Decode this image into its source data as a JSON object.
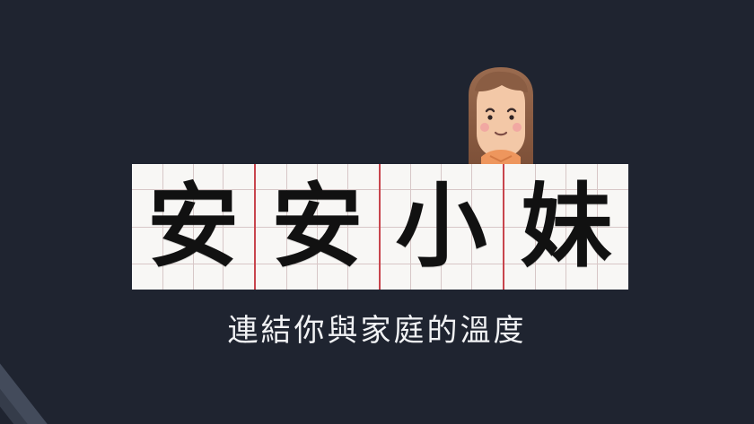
{
  "colors": {
    "background": "#1f2430",
    "banner_border": "#c8454d",
    "banner_fill": "#f8f7f5",
    "guide_lines": "#d7c7c7",
    "title_text": "#111111",
    "tagline_text": "#f1f2f4"
  },
  "icons": {
    "mascot": "girl-avatar-icon",
    "corner_decoration": "diagonal-stripes-icon"
  },
  "title": {
    "characters": [
      "安",
      "安",
      "小",
      "妹"
    ]
  },
  "tagline": "連結你與家庭的溫度"
}
